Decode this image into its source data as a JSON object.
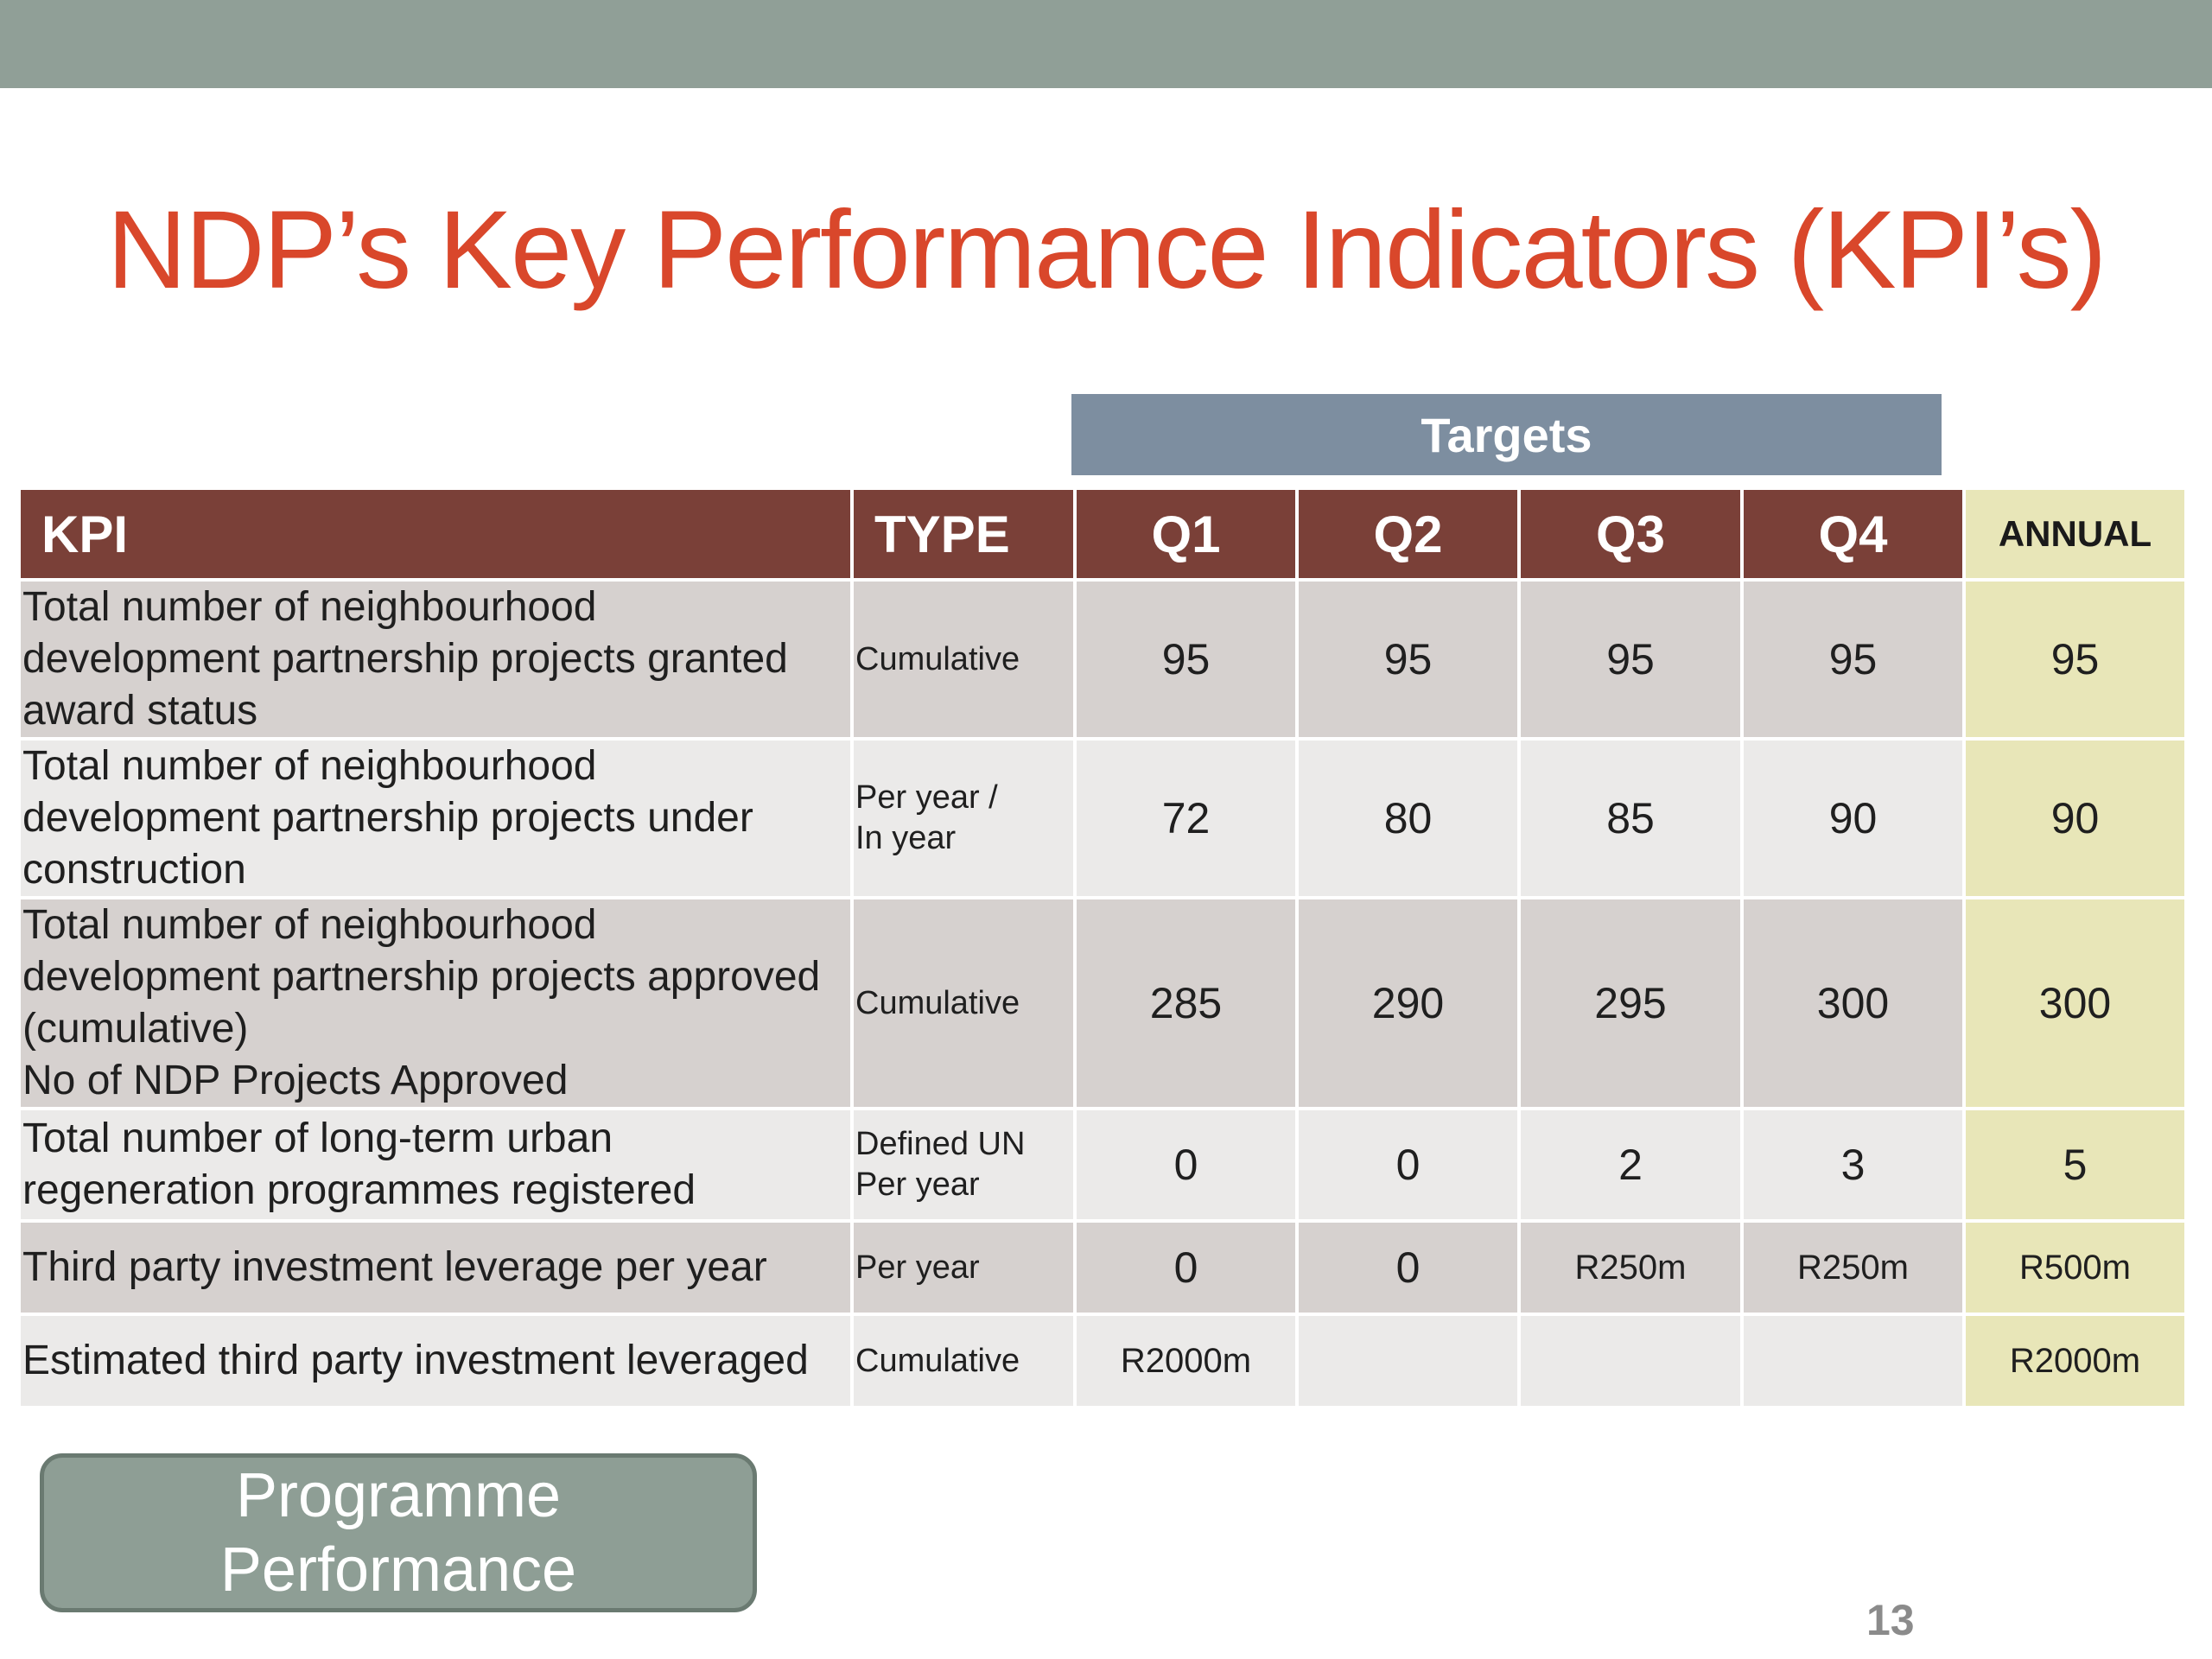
{
  "slide": {
    "title": "NDP’s Key Performance Indicators (KPI’s)",
    "page_number": "13",
    "accent_color": "#d9472b",
    "top_bar_color": "#909f97"
  },
  "table": {
    "group_header": "Targets",
    "headers": {
      "kpi": "KPI",
      "type": "TYPE",
      "q1": "Q1",
      "q2": "Q2",
      "q3": "Q3",
      "q4": "Q4",
      "annual": "ANNUAL"
    },
    "rows": [
      {
        "kpi_lines": [
          "Total number of neighbourhood",
          "development partnership projects granted",
          "award status"
        ],
        "type_lines": [
          "Cumulative"
        ],
        "q1": "95",
        "q2": "95",
        "q3": "95",
        "q4": "95",
        "annual": "95"
      },
      {
        "kpi_lines": [
          "Total number of neighbourhood",
          "development partnership projects under",
          "construction"
        ],
        "type_lines": [
          "Per year /",
          "In year"
        ],
        "q1": "72",
        "q2": "80",
        "q3": "85",
        "q4": "90",
        "annual": "90"
      },
      {
        "kpi_lines": [
          "Total number of neighbourhood",
          "development partnership projects approved",
          "(cumulative)",
          "No of NDP Projects Approved"
        ],
        "type_lines": [
          "Cumulative"
        ],
        "q1": "285",
        "q2": "290",
        "q3": "295",
        "q4": "300",
        "annual": "300"
      },
      {
        "kpi_lines": [
          "Total number of long-term urban",
          "regeneration programmes registered"
        ],
        "type_lines": [
          "Defined  UN",
          "Per year"
        ],
        "q1": "0",
        "q2": "0",
        "q3": "2",
        "q4": "3",
        "annual": "5"
      },
      {
        "kpi_lines": [
          "Third party investment leverage per year"
        ],
        "type_lines": [
          "Per year"
        ],
        "q1": "0",
        "q2": "0",
        "q3": "R250m",
        "q4": "R250m",
        "annual": "R500m"
      },
      {
        "kpi_lines": [
          "Estimated third party investment leveraged"
        ],
        "type_lines": [
          "Cumulative"
        ],
        "q1": "R2000m",
        "q2": "",
        "q3": "",
        "q4": "",
        "annual": "R2000m"
      }
    ]
  },
  "navigation": {
    "button_lines": [
      "Programme",
      "Performance"
    ]
  }
}
